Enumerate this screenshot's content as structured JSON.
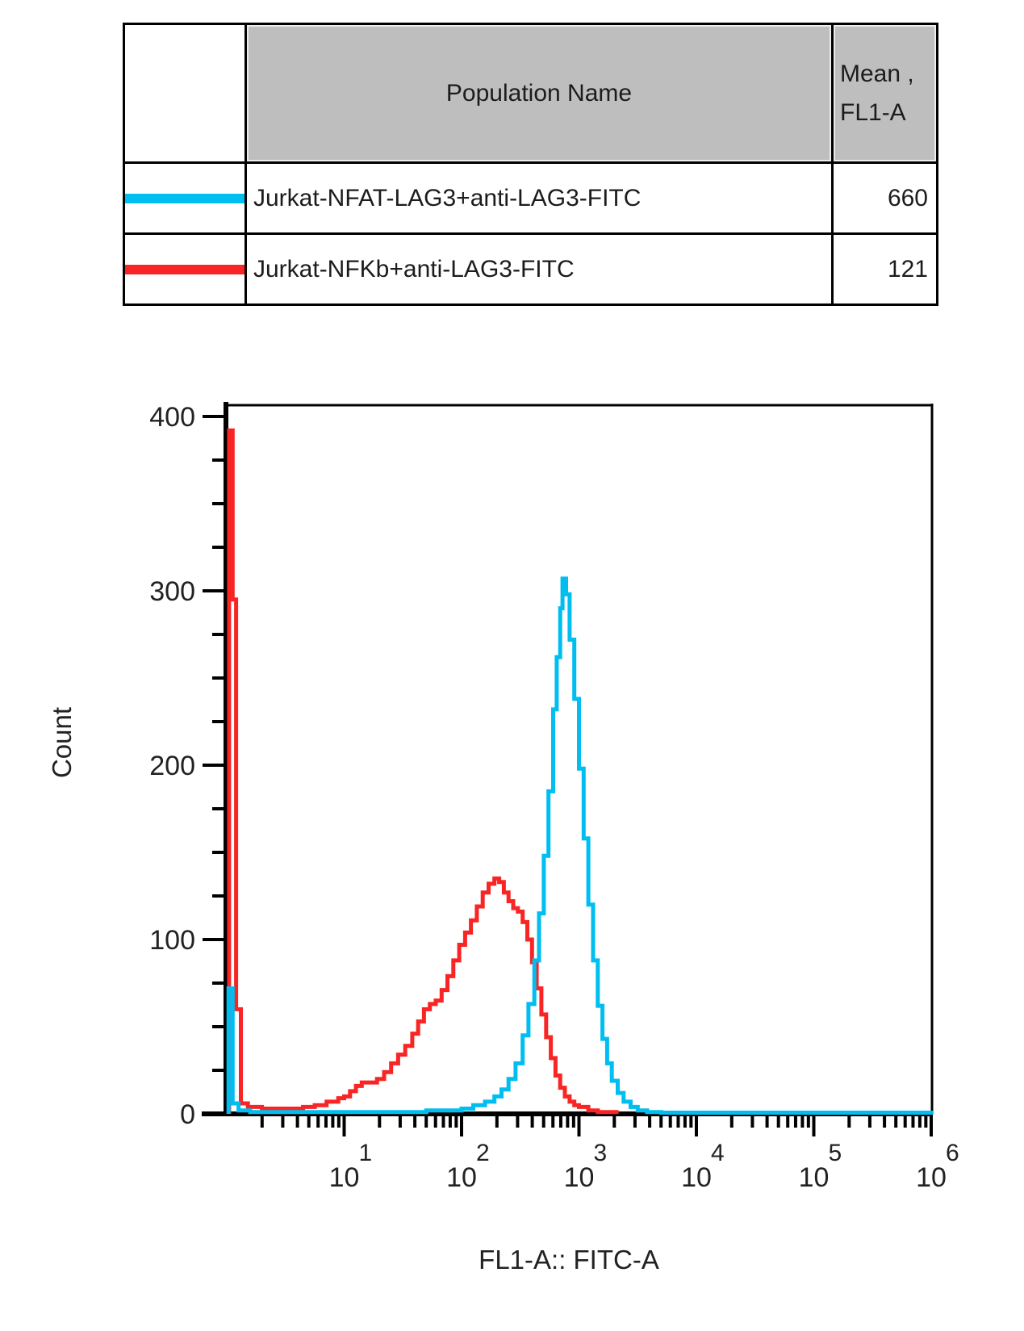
{
  "legend_table": {
    "headers": {
      "population": "Population Name",
      "mean_line1": "Mean ,",
      "mean_line2": "FL1-A"
    },
    "rows": [
      {
        "name": "Jurkat-NFAT-LAG3+anti-LAG3-FITC",
        "mean": "660",
        "color": "#00bef0"
      },
      {
        "name": "Jurkat-NFKb+anti-LAG3-FITC",
        "mean": "121",
        "color": "#f92525"
      }
    ]
  },
  "chart_data": {
    "type": "line",
    "subtype": "flow-cytometry-histogram-overlay",
    "title": "",
    "xlabel": "FL1-A:: FITC-A",
    "ylabel": "Count",
    "x_scale": "log10",
    "x_range_log10": [
      0,
      6.02
    ],
    "ylim": [
      0,
      405
    ],
    "y_ticks": [
      0,
      100,
      200,
      300,
      400
    ],
    "y_minor_step": 25,
    "x_major_ticks_log10": [
      1,
      2,
      3,
      4,
      5,
      6
    ],
    "x_tick_label_base": "10",
    "grid": false,
    "legend_position": "table-above",
    "series": [
      {
        "name": "Jurkat-NFKb+anti-LAG3-FITC",
        "color": "#f92525",
        "mean_fl1a": 121,
        "peak": {
          "x_log10": 2.28,
          "count": 135
        },
        "points": [
          [
            0.02,
            0
          ],
          [
            0.02,
            392
          ],
          [
            0.05,
            392
          ],
          [
            0.05,
            295
          ],
          [
            0.08,
            295
          ],
          [
            0.08,
            60
          ],
          [
            0.12,
            60
          ],
          [
            0.12,
            6
          ],
          [
            0.18,
            4
          ],
          [
            0.3,
            3
          ],
          [
            0.45,
            3
          ],
          [
            0.55,
            3
          ],
          [
            0.65,
            4
          ],
          [
            0.75,
            5
          ],
          [
            0.85,
            7
          ],
          [
            0.95,
            9
          ],
          [
            1.0,
            10
          ],
          [
            1.05,
            13
          ],
          [
            1.1,
            16
          ],
          [
            1.15,
            18
          ],
          [
            1.22,
            18
          ],
          [
            1.28,
            20
          ],
          [
            1.34,
            24
          ],
          [
            1.4,
            29
          ],
          [
            1.46,
            34
          ],
          [
            1.52,
            39
          ],
          [
            1.58,
            46
          ],
          [
            1.63,
            53
          ],
          [
            1.68,
            60
          ],
          [
            1.73,
            63
          ],
          [
            1.78,
            65
          ],
          [
            1.83,
            71
          ],
          [
            1.88,
            79
          ],
          [
            1.93,
            88
          ],
          [
            1.98,
            97
          ],
          [
            2.03,
            104
          ],
          [
            2.08,
            111
          ],
          [
            2.13,
            119
          ],
          [
            2.18,
            127
          ],
          [
            2.23,
            132
          ],
          [
            2.28,
            135
          ],
          [
            2.32,
            133
          ],
          [
            2.36,
            127
          ],
          [
            2.4,
            122
          ],
          [
            2.44,
            118
          ],
          [
            2.48,
            116
          ],
          [
            2.52,
            110
          ],
          [
            2.56,
            100
          ],
          [
            2.6,
            87
          ],
          [
            2.64,
            72
          ],
          [
            2.68,
            57
          ],
          [
            2.72,
            44
          ],
          [
            2.76,
            32
          ],
          [
            2.8,
            22
          ],
          [
            2.84,
            15
          ],
          [
            2.88,
            10
          ],
          [
            2.92,
            7
          ],
          [
            2.96,
            5
          ],
          [
            3.0,
            4
          ],
          [
            3.08,
            2
          ],
          [
            3.16,
            1
          ],
          [
            3.25,
            1
          ],
          [
            3.32,
            0
          ]
        ]
      },
      {
        "name": "Jurkat-NFAT-LAG3+anti-LAG3-FITC",
        "color": "#00bef0",
        "mean_fl1a": 660,
        "peak": {
          "x_log10": 2.86,
          "count": 307
        },
        "points": [
          [
            0.015,
            0
          ],
          [
            0.015,
            72
          ],
          [
            0.05,
            72
          ],
          [
            0.05,
            6
          ],
          [
            0.1,
            2
          ],
          [
            0.2,
            1
          ],
          [
            0.4,
            1
          ],
          [
            0.7,
            1
          ],
          [
            1.0,
            1
          ],
          [
            1.3,
            1
          ],
          [
            1.5,
            1
          ],
          [
            1.7,
            2
          ],
          [
            1.85,
            2
          ],
          [
            2.0,
            3
          ],
          [
            2.1,
            5
          ],
          [
            2.2,
            7
          ],
          [
            2.28,
            10
          ],
          [
            2.34,
            14
          ],
          [
            2.4,
            20
          ],
          [
            2.46,
            29
          ],
          [
            2.52,
            45
          ],
          [
            2.57,
            63
          ],
          [
            2.62,
            88
          ],
          [
            2.66,
            115
          ],
          [
            2.7,
            148
          ],
          [
            2.74,
            185
          ],
          [
            2.78,
            232
          ],
          [
            2.81,
            262
          ],
          [
            2.84,
            290
          ],
          [
            2.86,
            307
          ],
          [
            2.89,
            298
          ],
          [
            2.92,
            272
          ],
          [
            2.96,
            238
          ],
          [
            3.0,
            198
          ],
          [
            3.04,
            158
          ],
          [
            3.08,
            120
          ],
          [
            3.12,
            88
          ],
          [
            3.16,
            62
          ],
          [
            3.2,
            43
          ],
          [
            3.24,
            29
          ],
          [
            3.28,
            19
          ],
          [
            3.33,
            12
          ],
          [
            3.38,
            7
          ],
          [
            3.44,
            4
          ],
          [
            3.5,
            2
          ],
          [
            3.58,
            1
          ],
          [
            3.7,
            0.7
          ],
          [
            4.2,
            0.7
          ],
          [
            4.8,
            0.7
          ],
          [
            5.4,
            0.7
          ],
          [
            6.02,
            0.7
          ]
        ]
      }
    ]
  }
}
